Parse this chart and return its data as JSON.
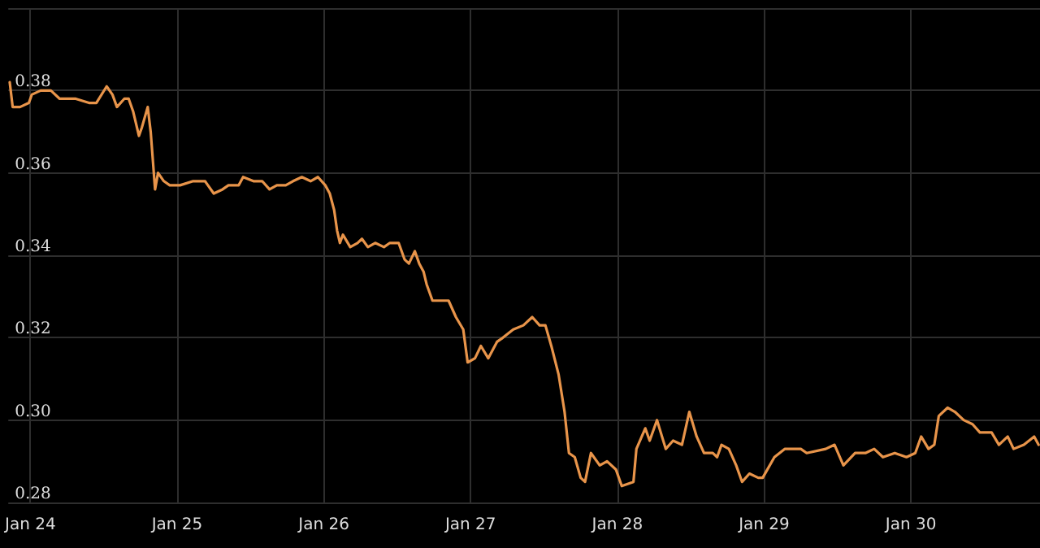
{
  "chart_data": {
    "type": "line",
    "grid": true,
    "marker": "none",
    "line_style": "solid",
    "xlim": [
      "--01-23T20:24",
      "--01-30T21:07"
    ],
    "xticks": [
      {
        "value": "--01-24",
        "label": "Jan 24"
      },
      {
        "value": "--01-25",
        "label": "Jan 25"
      },
      {
        "value": "--01-26",
        "label": "Jan 26"
      },
      {
        "value": "--01-27",
        "label": "Jan 27"
      },
      {
        "value": "--01-28",
        "label": "Jan 28"
      },
      {
        "value": "--01-29",
        "label": "Jan 29"
      },
      {
        "value": "--01-30",
        "label": "Jan 30"
      }
    ],
    "ylim": [
      0.28,
      0.4
    ],
    "yticks": [
      0.28,
      {
        "value": 0.3,
        "label": "0.30"
      },
      0.32,
      0.34,
      0.36,
      0.38,
      {
        "value": 0.4,
        "label": null
      }
    ],
    "x": [
      "--01-23T20:38",
      "--01-23T21:07",
      "--01-23T22:19",
      "--01-23T23:46",
      "--01-24T00:14",
      "--01-24T01:41",
      "--01-24T02:24",
      "--01-24T03:22",
      "--01-24T04:48",
      "--01-24T06:00",
      "--01-24T07:26",
      "--01-24T09:36",
      "--01-24T10:48",
      "--01-24T12:29",
      "--01-24T13:26",
      "--01-24T14:10",
      "--01-24T15:22",
      "--01-24T16:05",
      "--01-24T16:48",
      "--01-24T17:46",
      "--01-24T18:14",
      "--01-24T19:12",
      "--01-24T19:41",
      "--01-24T20:24",
      "--01-24T20:53",
      "--01-24T21:50",
      "--01-24T22:48",
      "--01-25T00:29",
      "--01-25T02:38",
      "--01-25T04:34",
      "--01-25T06:00",
      "--01-25T07:26",
      "--01-25T08:24",
      "--01-25T10:05",
      "--01-25T10:48",
      "--01-25T12:29",
      "--01-25T13:55",
      "--01-25T15:07",
      "--01-25T16:19",
      "--01-25T17:46",
      "--01-25T18:58",
      "--01-25T20:24",
      "--01-25T21:50",
      "--01-25T23:02",
      "--01-26T00:14",
      "--01-26T00:58",
      "--01-26T01:41",
      "--01-26T02:10",
      "--01-26T02:38",
      "--01-26T03:07",
      "--01-26T04:19",
      "--01-26T05:31",
      "--01-26T06:14",
      "--01-26T07:12",
      "--01-26T08:24",
      "--01-26T09:50",
      "--01-26T10:48",
      "--01-26T12:14",
      "--01-26T13:12",
      "--01-26T13:55",
      "--01-26T14:53",
      "--01-26T15:36",
      "--01-26T16:19",
      "--01-26T16:48",
      "--01-26T17:46",
      "--01-26T18:43",
      "--01-26T20:24",
      "--01-26T21:36",
      "--01-26T22:48",
      "--01-26T23:31",
      "--01-27T00:43",
      "--01-27T01:41",
      "--01-27T02:53",
      "--01-27T04:19",
      "--01-27T05:17",
      "--01-27T06:58",
      "--01-27T08:38",
      "--01-27T10:05",
      "--01-27T11:17",
      "--01-27T12:14",
      "--01-27T13:12",
      "--01-27T14:24",
      "--01-27T15:22",
      "--01-27T16:05",
      "--01-27T17:02",
      "--01-27T18:00",
      "--01-27T18:43",
      "--01-27T19:41",
      "--01-27T21:07",
      "--01-27T22:19",
      "--01-27T23:46",
      "--01-28T00:43",
      "--01-28T02:38",
      "--01-28T03:07",
      "--01-28T04:34",
      "--01-28T05:17",
      "--01-28T06:29",
      "--01-28T07:55",
      "--01-28T09:07",
      "--01-28T10:34",
      "--01-28T11:46",
      "--01-28T12:58",
      "--01-28T14:10",
      "--01-28T15:36",
      "--01-28T16:19",
      "--01-28T17:02",
      "--01-28T18:14",
      "--01-28T19:26",
      "--01-28T20:24",
      "--01-28T21:36",
      "--01-28T23:02",
      "--01-28T23:46",
      "--01-29T01:41",
      "--01-29T03:22",
      "--01-29T04:48",
      "--01-29T06:00",
      "--01-29T06:58",
      "--01-29T10:05",
      "--01-29T11:31",
      "--01-29T12:58",
      "--01-29T14:53",
      "--01-29T16:34",
      "--01-29T18:00",
      "--01-29T19:26",
      "--01-29T21:22",
      "--01-29T23:17",
      "--01-30T00:43",
      "--01-30T01:41",
      "--01-30T02:53",
      "--01-30T03:50",
      "--01-30T04:34",
      "--01-30T06:00",
      "--01-30T07:12",
      "--01-30T08:38",
      "--01-30T10:05",
      "--01-30T11:17",
      "--01-30T13:12",
      "--01-30T14:24",
      "--01-30T15:50",
      "--01-30T16:48",
      "--01-30T18:29",
      "--01-30T20:10",
      "--01-30T20:53"
    ],
    "series": [
      {
        "color": "#e8944a",
        "values": [
          0.382,
          0.376,
          0.376,
          0.377,
          0.379,
          0.38,
          0.38,
          0.38,
          0.378,
          0.378,
          0.378,
          0.377,
          0.377,
          0.381,
          0.379,
          0.376,
          0.378,
          0.378,
          0.375,
          0.369,
          0.371,
          0.376,
          0.37,
          0.356,
          0.36,
          0.358,
          0.357,
          0.357,
          0.358,
          0.358,
          0.355,
          0.356,
          0.357,
          0.357,
          0.359,
          0.358,
          0.358,
          0.356,
          0.357,
          0.357,
          0.358,
          0.359,
          0.358,
          0.359,
          0.357,
          0.355,
          0.351,
          0.346,
          0.343,
          0.345,
          0.342,
          0.343,
          0.344,
          0.342,
          0.343,
          0.342,
          0.343,
          0.343,
          0.339,
          0.338,
          0.341,
          0.338,
          0.336,
          0.333,
          0.329,
          0.329,
          0.329,
          0.325,
          0.322,
          0.314,
          0.315,
          0.318,
          0.315,
          0.319,
          0.32,
          0.322,
          0.323,
          0.325,
          0.323,
          0.323,
          0.318,
          0.311,
          0.302,
          0.292,
          0.291,
          0.286,
          0.285,
          0.292,
          0.289,
          0.29,
          0.288,
          0.284,
          0.285,
          0.293,
          0.298,
          0.295,
          0.3,
          0.293,
          0.295,
          0.294,
          0.302,
          0.296,
          0.292,
          0.292,
          0.291,
          0.294,
          0.293,
          0.289,
          0.285,
          0.287,
          0.286,
          0.286,
          0.291,
          0.293,
          0.293,
          0.293,
          0.292,
          0.293,
          0.294,
          0.289,
          0.292,
          0.292,
          0.293,
          0.291,
          0.292,
          0.291,
          0.292,
          0.296,
          0.293,
          0.294,
          0.301,
          0.303,
          0.302,
          0.3,
          0.299,
          0.297,
          0.297,
          0.294,
          0.296,
          0.293,
          0.294,
          0.296,
          0.294
        ]
      }
    ]
  }
}
